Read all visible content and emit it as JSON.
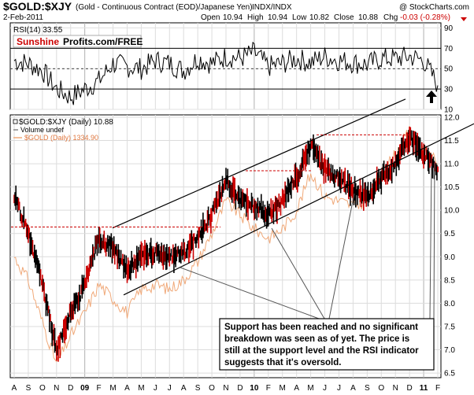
{
  "header": {
    "symbol": "$GOLD:$XJY",
    "description": "(Gold - Continuous Contract (EOD)/Japanese Yen)",
    "exchange": "INDX/INDX",
    "copyright": "@ StockCharts.com",
    "date": "2-Feb-2011",
    "open_label": "Open",
    "open_value": "10.94",
    "high_label": "High",
    "high_value": "10.94",
    "low_label": "Low",
    "low_value": "10.82",
    "close_label": "Close",
    "close_value": "10.88",
    "chg_label": "Chg",
    "chg_value": "-0.03 (-0.28%)"
  },
  "rsi_panel": {
    "label": "RSI(14) 33.55",
    "watermark_part1": "Sunshine",
    "watermark_part2": "Profits.com/FREE"
  },
  "price_panel": {
    "legend_main": "$GOLD:$XJY (Daily) 10.88",
    "legend_volume": "Volume undef",
    "legend_gold": "$GOLD (Daily) 1334.90"
  },
  "annotation": {
    "line1": "Support has been reached and no significant",
    "line2": "breakdown was seen as of yet. The price is",
    "line3": "still at the support level and the RSI indicator",
    "line4": "suggests that it's oversold."
  },
  "colors": {
    "price_bars": "#000000",
    "price_up_highlight": "#cc0000",
    "gold_line": "#f0a878",
    "resistance_dash": "#cc0000",
    "trend_channel": "#000000",
    "header_red": "#cc0000"
  },
  "chart_data": [
    {
      "type": "line",
      "title": "RSI(14)",
      "x": [
        "A",
        "S",
        "O",
        "N",
        "D",
        "09",
        "F",
        "M",
        "A",
        "M",
        "J",
        "J",
        "A",
        "S",
        "O",
        "N",
        "D",
        "10",
        "F",
        "M",
        "A",
        "M",
        "J",
        "J",
        "A",
        "S",
        "O",
        "N",
        "D",
        "11",
        "F"
      ],
      "series": [
        {
          "name": "RSI(14)",
          "last": 33.55,
          "values": [
            58,
            55,
            48,
            30,
            22,
            30,
            38,
            55,
            52,
            50,
            58,
            55,
            48,
            60,
            55,
            62,
            60,
            66,
            52,
            55,
            60,
            56,
            62,
            58,
            56,
            54,
            60,
            60,
            62,
            58,
            34
          ]
        }
      ],
      "yticks": [
        10,
        30,
        50,
        70,
        90
      ],
      "reference_lines": [
        30,
        70
      ],
      "ylim": [
        10,
        95
      ]
    },
    {
      "type": "line",
      "title": "$GOLD:$XJY (Daily)",
      "x": [
        "A",
        "S",
        "O",
        "N",
        "D",
        "09",
        "F",
        "M",
        "A",
        "M",
        "J",
        "J",
        "A",
        "S",
        "O",
        "N",
        "D",
        "10",
        "F",
        "M",
        "A",
        "M",
        "J",
        "J",
        "A",
        "S",
        "O",
        "N",
        "D",
        "11",
        "F"
      ],
      "series": [
        {
          "name": "$GOLD:$XJY (Daily)",
          "last": 10.88,
          "values": [
            10.3,
            9.5,
            8.4,
            7.0,
            7.8,
            8.4,
            9.4,
            9.2,
            8.7,
            9.0,
            9.1,
            9.0,
            9.1,
            9.4,
            9.9,
            10.6,
            10.2,
            10.1,
            9.9,
            10.2,
            10.7,
            11.4,
            10.9,
            10.7,
            10.4,
            10.3,
            10.7,
            11.0,
            11.6,
            11.2,
            10.88
          ]
        },
        {
          "name": "$GOLD (Daily)",
          "last": 1334.9,
          "values": [
            9.0,
            8.5,
            7.6,
            6.7,
            7.3,
            7.8,
            8.4,
            8.1,
            7.8,
            8.3,
            8.4,
            8.3,
            8.5,
            8.9,
            9.5,
            10.2,
            9.9,
            9.6,
            9.4,
            9.6,
            10.0,
            10.8,
            10.3,
            10.2,
            10.1,
            10.2,
            10.8,
            11.2,
            11.7,
            11.3,
            11.0
          ]
        }
      ],
      "yticks": [
        6.5,
        7.0,
        7.5,
        8.0,
        8.5,
        9.0,
        9.5,
        10.0,
        10.5,
        11.0,
        11.5,
        12.0
      ],
      "ylim": [
        6.4,
        12.05
      ],
      "resistance_levels": [
        9.64,
        10.85,
        11.62
      ]
    }
  ]
}
